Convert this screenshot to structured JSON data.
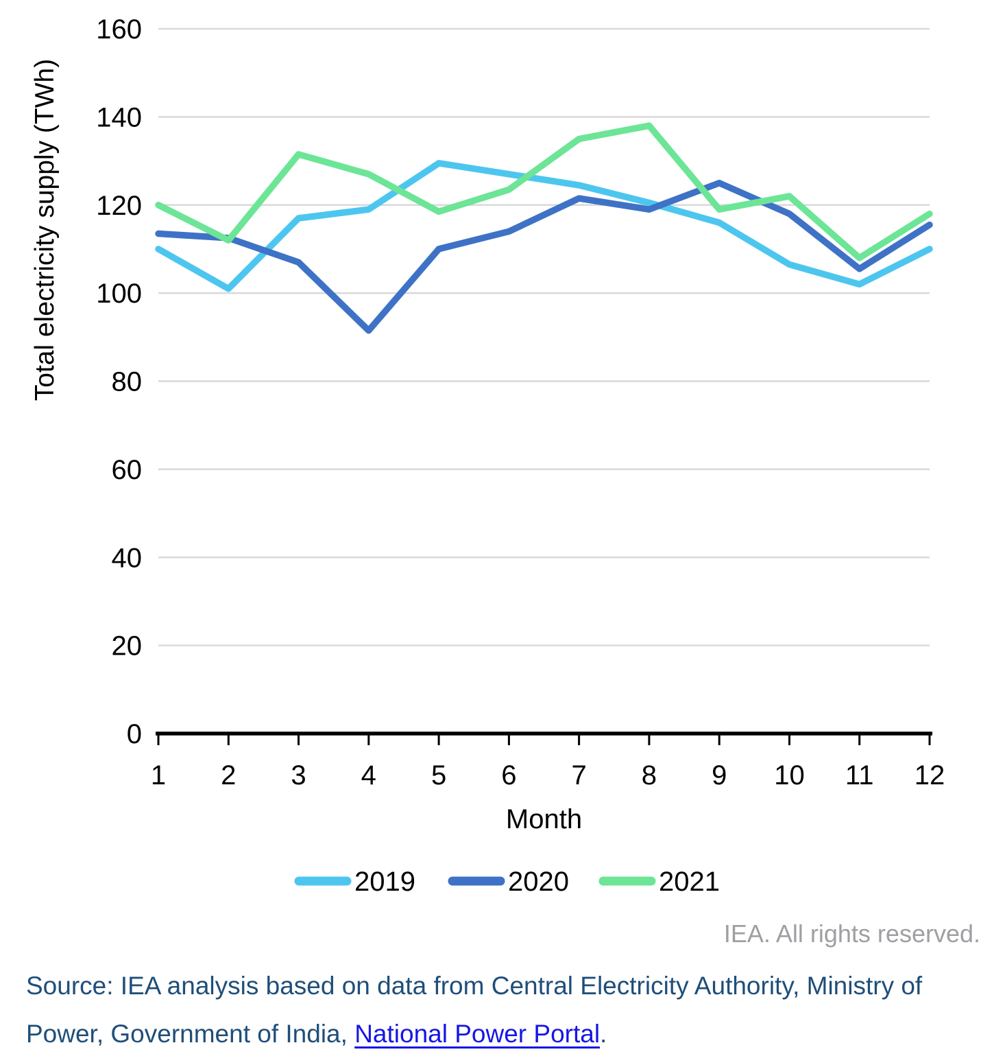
{
  "chart_data": {
    "type": "line",
    "title": "",
    "xlabel": "Month",
    "ylabel": "Total electricity supply (TWh)",
    "x": [
      1,
      2,
      3,
      4,
      5,
      6,
      7,
      8,
      9,
      10,
      11,
      12
    ],
    "xlim": [
      1,
      12
    ],
    "ylim": [
      0,
      160
    ],
    "yticks": [
      0,
      20,
      40,
      60,
      80,
      100,
      120,
      140,
      160
    ],
    "grid": "horizontal",
    "gridline_color": "#d9d9d9",
    "axis_color": "#000000",
    "legend_position": "bottom",
    "series": [
      {
        "name": "2019",
        "color": "#4dc6ef",
        "values": [
          110,
          101,
          117,
          119,
          129.5,
          127,
          124.5,
          120.5,
          116,
          106.5,
          102,
          110
        ]
      },
      {
        "name": "2020",
        "color": "#3e72c6",
        "values": [
          113.5,
          112.5,
          107,
          91.5,
          110,
          114,
          121.5,
          119,
          125,
          118,
          105.5,
          115.5
        ]
      },
      {
        "name": "2021",
        "color": "#6ce596",
        "values": [
          120,
          112,
          131.5,
          127,
          118.5,
          123.5,
          135,
          138,
          119,
          122,
          108,
          118
        ]
      }
    ]
  },
  "footer": {
    "rights_text": "IEA. All rights reserved.",
    "rights_color": "#9e9fa2",
    "source_line1": "Source: IEA analysis based on data from Central Electricity Authority, Ministry of",
    "source_line2_prefix": "Power, Government of India, ",
    "source_link_text": "National Power Portal",
    "source_suffix": ".",
    "source_color": "#1f4e79",
    "link_color": "#1515e8"
  }
}
